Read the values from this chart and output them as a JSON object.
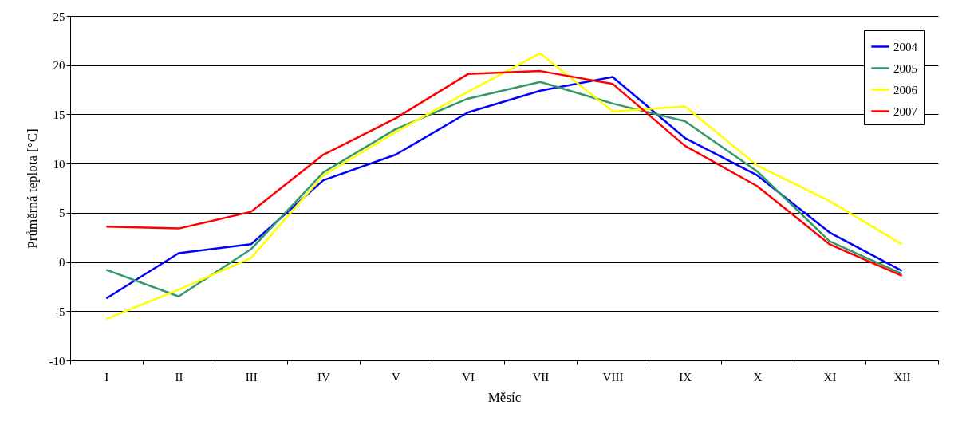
{
  "chart_data": {
    "type": "line",
    "xlabel": "Měsíc",
    "ylabel": "Průměrná teplota [°C]",
    "categories": [
      "I",
      "II",
      "III",
      "IV",
      "V",
      "VI",
      "VII",
      "VIII",
      "IX",
      "X",
      "XI",
      "XII"
    ],
    "series": [
      {
        "name": "2004",
        "color": "#0000ff",
        "values": [
          -3.7,
          0.9,
          1.8,
          8.3,
          10.9,
          15.2,
          17.4,
          18.8,
          12.6,
          8.8,
          3.0,
          -0.9
        ]
      },
      {
        "name": "2005",
        "color": "#339966",
        "values": [
          -0.8,
          -3.5,
          1.3,
          9.1,
          13.5,
          16.6,
          18.3,
          16.1,
          14.3,
          9.2,
          2.1,
          -1.2
        ]
      },
      {
        "name": "2006",
        "color": "#ffff00",
        "values": [
          -5.8,
          -2.8,
          0.4,
          8.8,
          13.2,
          17.3,
          21.2,
          15.3,
          15.8,
          9.8,
          6.2,
          1.8
        ]
      },
      {
        "name": "2007",
        "color": "#ff0000",
        "values": [
          3.6,
          3.4,
          5.1,
          10.9,
          14.6,
          19.1,
          19.4,
          18.1,
          11.8,
          7.7,
          1.8,
          -1.4
        ]
      }
    ],
    "ylim": [
      -10,
      25
    ],
    "yticks": [
      -10,
      -5,
      0,
      5,
      10,
      15,
      20,
      25
    ],
    "grid": "y",
    "legend": "top right",
    "marker": "none",
    "line_style": "solid"
  }
}
